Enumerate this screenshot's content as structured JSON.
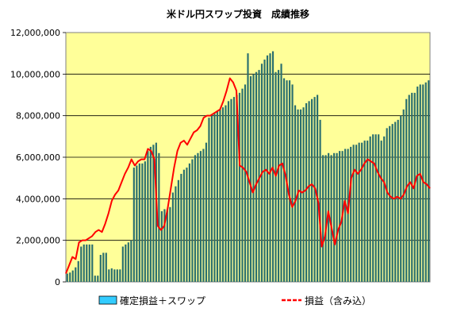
{
  "chart_data": {
    "type": "bar",
    "title": "米ドル円スワップ投資　成績推移",
    "xlabel": "",
    "ylabel": "",
    "ylim": [
      0,
      12000000
    ],
    "yticks": [
      0,
      2000000,
      4000000,
      6000000,
      8000000,
      10000000,
      12000000
    ],
    "ytick_labels": [
      "0",
      "2,000,000",
      "4,000,000",
      "6,000,000",
      "8,000,000",
      "10,000,000",
      "12,000,000"
    ],
    "grid": true,
    "legend": "bottom",
    "plot_background": "#ffff99",
    "series": [
      {
        "name": "確定損益＋スワップ",
        "type": "bar",
        "color": "#2a6f6f",
        "legend_color": "#33ccff",
        "values": [
          400000,
          450000,
          550000,
          700000,
          1000000,
          1700000,
          1800000,
          1800000,
          1800000,
          1800000,
          300000,
          300000,
          1300000,
          1400000,
          1400000,
          600000,
          650000,
          600000,
          600000,
          600000,
          1700000,
          1800000,
          1900000,
          2000000,
          5500000,
          5600000,
          5700000,
          5700000,
          5800000,
          6300000,
          6500000,
          6600000,
          6700000,
          6200000,
          3400000,
          3500000,
          3500000,
          3600000,
          4300000,
          4600000,
          4900000,
          5200000,
          5400000,
          5500000,
          5700000,
          5900000,
          6100000,
          6200000,
          6300000,
          6400000,
          6700000,
          7900000,
          8000000,
          8100000,
          8200000,
          8300000,
          8400000,
          8500000,
          8700000,
          8800000,
          8900000,
          9000000,
          9100000,
          9300000,
          9500000,
          11000000,
          9900000,
          10000000,
          10100000,
          10200000,
          10500000,
          10700000,
          10900000,
          11000000,
          11100000,
          10100000,
          10200000,
          10500000,
          9800000,
          9700000,
          9700000,
          9500000,
          8500000,
          8300000,
          8300000,
          8400000,
          8600000,
          8700000,
          8800000,
          8900000,
          9000000,
          7800000,
          6100000,
          6100000,
          6200000,
          6100000,
          6200000,
          6200000,
          6300000,
          6300000,
          6400000,
          6400000,
          6500000,
          6600000,
          6600000,
          6700000,
          6700000,
          6800000,
          6800000,
          7000000,
          7100000,
          7100000,
          7100000,
          6800000,
          7000000,
          7400000,
          7500000,
          7600000,
          7700000,
          7800000,
          8000000,
          8300000,
          8800000,
          9000000,
          9100000,
          9100000,
          9400000,
          9500000,
          9500000,
          9600000,
          9700000
        ]
      },
      {
        "name": "損益（含み込）",
        "type": "line",
        "color": "#ff0000",
        "values": [
          400000,
          800000,
          1200000,
          1100000,
          1900000,
          2000000,
          2000000,
          2100000,
          2200000,
          2400000,
          2500000,
          2400000,
          2800000,
          3300000,
          3900000,
          4200000,
          4400000,
          4800000,
          5200000,
          5500000,
          5900000,
          5600000,
          5800000,
          5900000,
          5900000,
          6400000,
          6300000,
          5900000,
          2700000,
          2500000,
          2700000,
          3500000,
          4500000,
          5500000,
          6300000,
          6700000,
          6800000,
          6600000,
          6900000,
          7200000,
          7300000,
          7500000,
          7900000,
          8000000,
          8000000,
          8100000,
          8200000,
          8300000,
          8700000,
          9200000,
          9800000,
          9600000,
          9200000,
          5600000,
          5500000,
          5300000,
          4800000,
          4300000,
          4700000,
          5000000,
          5300000,
          5400000,
          5200000,
          5500000,
          5100000,
          5600000,
          5700000,
          5100000,
          4200000,
          3600000,
          3900000,
          4400000,
          4300000,
          4400000,
          4600000,
          4700000,
          4500000,
          3800000,
          1700000,
          2200000,
          3400000,
          2600000,
          1800000,
          2500000,
          2900000,
          3900000,
          3300000,
          5000000,
          5400000,
          5200000,
          5400000,
          5700000,
          5900000,
          5800000,
          5700000,
          5300000,
          5000000,
          4800000,
          4300000,
          4100000,
          4000000,
          4100000,
          4000000,
          4200000,
          4600000,
          4800000,
          4500000,
          5100000,
          5200000,
          4800000,
          4700000,
          4500000
        ]
      }
    ]
  }
}
